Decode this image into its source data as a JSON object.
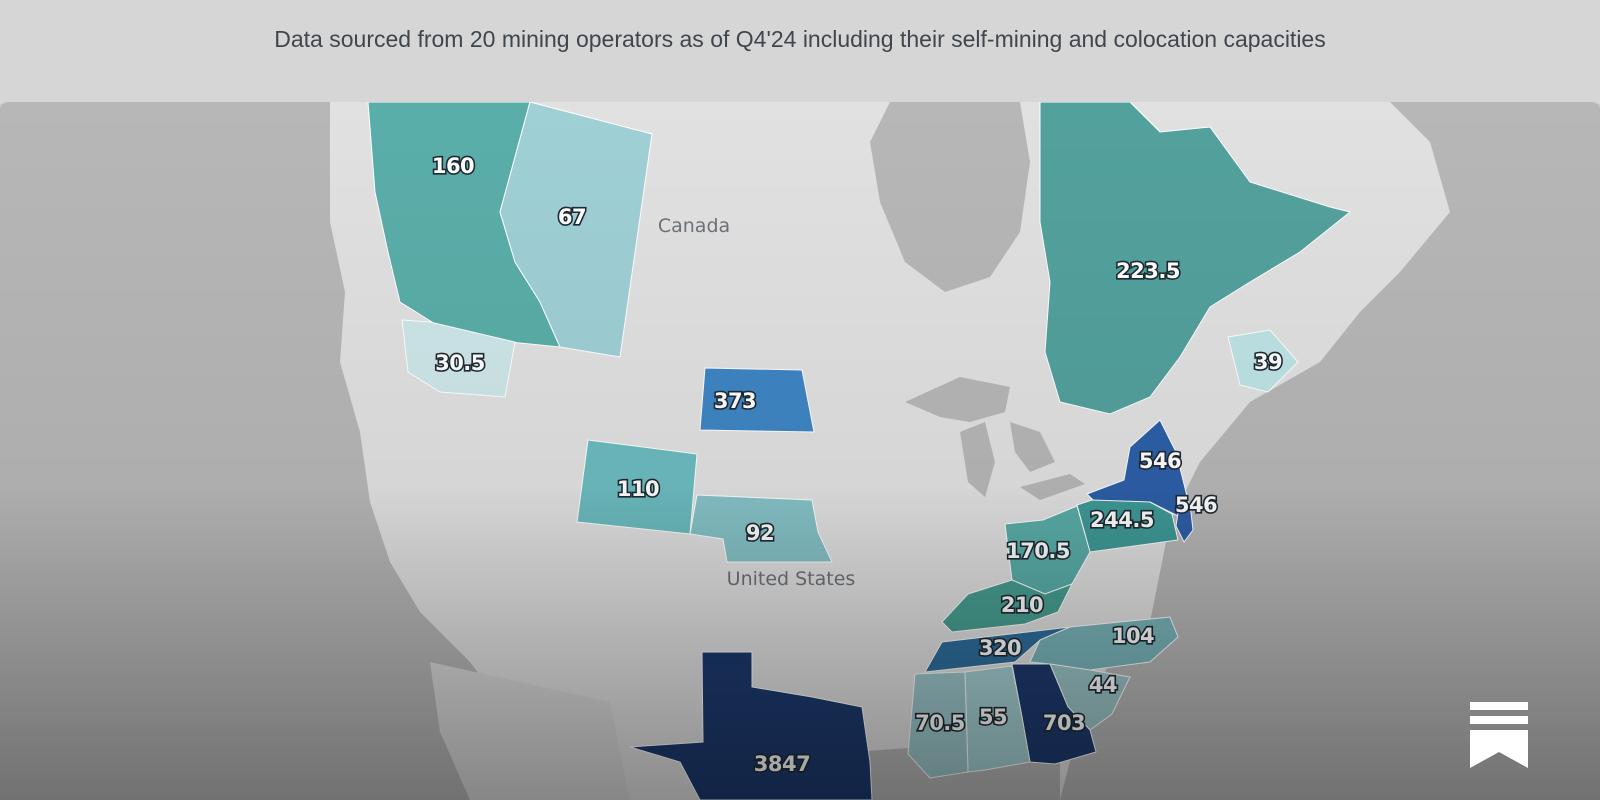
{
  "header": {
    "subtitle": "Data sourced from 20 mining operators as of Q4'24 including their self-mining and colocation capacities"
  },
  "map": {
    "country_labels": {
      "canada": "Canada",
      "united_states": "United States"
    },
    "colors": {
      "ocean": "#b7b7b7",
      "land": "#e1e1e1",
      "other_land": "#c3c3c3",
      "tier_light": "#bfe3e6",
      "tier_lightmid": "#9fd0d6",
      "tier_mid": "#6cbcc0",
      "tier_teal": "#5aaea9",
      "tier_blue": "#3e86c4",
      "tier_darkblue": "#2d5fa8",
      "tier_navy": "#1d3a6e"
    },
    "regions": [
      {
        "id": "british-columbia",
        "value": "160"
      },
      {
        "id": "alberta",
        "value": "67"
      },
      {
        "id": "quebec",
        "value": "223.5"
      },
      {
        "id": "new-brunswick",
        "value": "39"
      },
      {
        "id": "washington",
        "value": "30.5"
      },
      {
        "id": "north-dakota",
        "value": "373"
      },
      {
        "id": "wyoming",
        "value": "110"
      },
      {
        "id": "nebraska",
        "value": "92"
      },
      {
        "id": "new-york",
        "value": "546"
      },
      {
        "id": "new-jersey",
        "value": "546"
      },
      {
        "id": "pennsylvania",
        "value": "244.5"
      },
      {
        "id": "ohio",
        "value": "170.5"
      },
      {
        "id": "kentucky",
        "value": "210"
      },
      {
        "id": "tennessee",
        "value": "320"
      },
      {
        "id": "north-carolina",
        "value": "104"
      },
      {
        "id": "south-carolina",
        "value": "44"
      },
      {
        "id": "georgia",
        "value": "703"
      },
      {
        "id": "alabama",
        "value": "55"
      },
      {
        "id": "mississippi",
        "value": "70.5"
      },
      {
        "id": "texas",
        "value": "3847"
      }
    ]
  },
  "logo": {
    "icon": "bookmark-stack-icon"
  }
}
